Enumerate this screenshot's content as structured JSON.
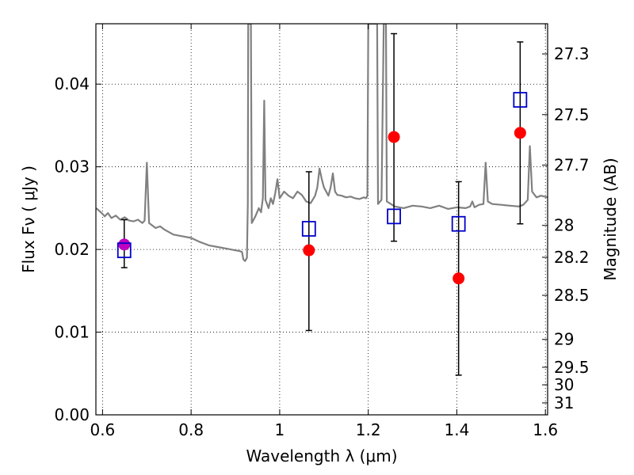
{
  "chart_data": {
    "type": "scatter",
    "xlabel": "Wavelength  λ (μm)",
    "ylabel": "Flux  Fν  ( μJy )",
    "y2label": "Magnitude (AB)",
    "xlim": [
      0.585,
      1.605
    ],
    "ylim": [
      0.0,
      0.0473
    ],
    "x_ticks": [
      0.6,
      0.8,
      1.0,
      1.2,
      1.4,
      1.6
    ],
    "x_tick_labels": [
      "0.6",
      "0.8",
      "1",
      "1.2",
      "1.4",
      "1.6"
    ],
    "y_ticks": [
      0.0,
      0.01,
      0.02,
      0.03,
      0.04
    ],
    "y_tick_labels": [
      "0.00",
      "0.01",
      "0.02",
      "0.03",
      "0.04"
    ],
    "y2_ticks": [
      27.3,
      27.5,
      27.7,
      28,
      28.2,
      28.5,
      29,
      29.5,
      30,
      31
    ],
    "y2_tick_labels": [
      "27.3",
      "27.5",
      "27.7",
      "28",
      "28.2",
      "28.5",
      "29",
      "29.5",
      "30",
      "31"
    ],
    "grid": true,
    "spectrum": {
      "color": "#808080",
      "points": [
        [
          0.585,
          0.025
        ],
        [
          0.59,
          0.0248
        ],
        [
          0.6,
          0.0243
        ],
        [
          0.605,
          0.024
        ],
        [
          0.612,
          0.0244
        ],
        [
          0.62,
          0.0238
        ],
        [
          0.63,
          0.0241
        ],
        [
          0.64,
          0.0236
        ],
        [
          0.65,
          0.0239
        ],
        [
          0.66,
          0.0235
        ],
        [
          0.67,
          0.0234
        ],
        [
          0.68,
          0.0236
        ],
        [
          0.69,
          0.0232
        ],
        [
          0.695,
          0.0235
        ],
        [
          0.7,
          0.0305
        ],
        [
          0.705,
          0.0232
        ],
        [
          0.72,
          0.0226
        ],
        [
          0.73,
          0.0228
        ],
        [
          0.74,
          0.0224
        ],
        [
          0.75,
          0.0221
        ],
        [
          0.76,
          0.0218
        ],
        [
          0.78,
          0.0216
        ],
        [
          0.8,
          0.0214
        ],
        [
          0.82,
          0.0209
        ],
        [
          0.84,
          0.0205
        ],
        [
          0.86,
          0.0203
        ],
        [
          0.88,
          0.0201
        ],
        [
          0.9,
          0.0199
        ],
        [
          0.91,
          0.0198
        ],
        [
          0.915,
          0.0197
        ],
        [
          0.918,
          0.0188
        ],
        [
          0.922,
          0.0186
        ],
        [
          0.926,
          0.019
        ],
        [
          0.928,
          0.0255
        ],
        [
          0.929,
          0.0473
        ],
        [
          0.935,
          0.0473
        ],
        [
          0.937,
          0.0232
        ],
        [
          0.945,
          0.024
        ],
        [
          0.953,
          0.025
        ],
        [
          0.958,
          0.0245
        ],
        [
          0.962,
          0.0262
        ],
        [
          0.965,
          0.038
        ],
        [
          0.968,
          0.026
        ],
        [
          0.975,
          0.025
        ],
        [
          0.98,
          0.0262
        ],
        [
          0.985,
          0.0255
        ],
        [
          0.99,
          0.0268
        ],
        [
          0.995,
          0.0285
        ],
        [
          1.0,
          0.0262
        ],
        [
          1.01,
          0.027
        ],
        [
          1.02,
          0.0265
        ],
        [
          1.03,
          0.0262
        ],
        [
          1.04,
          0.027
        ],
        [
          1.05,
          0.0266
        ],
        [
          1.06,
          0.0258
        ],
        [
          1.07,
          0.0256
        ],
        [
          1.08,
          0.0265
        ],
        [
          1.085,
          0.0275
        ],
        [
          1.09,
          0.0298
        ],
        [
          1.095,
          0.0285
        ],
        [
          1.1,
          0.0275
        ],
        [
          1.11,
          0.0265
        ],
        [
          1.115,
          0.0275
        ],
        [
          1.12,
          0.0292
        ],
        [
          1.125,
          0.027
        ],
        [
          1.13,
          0.0266
        ],
        [
          1.14,
          0.0265
        ],
        [
          1.15,
          0.0263
        ],
        [
          1.16,
          0.0264
        ],
        [
          1.17,
          0.0262
        ],
        [
          1.18,
          0.0261
        ],
        [
          1.19,
          0.0263
        ],
        [
          1.195,
          0.0262
        ],
        [
          1.198,
          0.0265
        ],
        [
          1.2,
          0.0473
        ],
        [
          1.22,
          0.0473
        ],
        [
          1.222,
          0.0255
        ],
        [
          1.23,
          0.026
        ],
        [
          1.235,
          0.0473
        ],
        [
          1.24,
          0.0473
        ],
        [
          1.242,
          0.0258
        ],
        [
          1.26,
          0.0252
        ],
        [
          1.28,
          0.025
        ],
        [
          1.3,
          0.0253
        ],
        [
          1.32,
          0.0252
        ],
        [
          1.34,
          0.025
        ],
        [
          1.36,
          0.0253
        ],
        [
          1.38,
          0.0249
        ],
        [
          1.4,
          0.0251
        ],
        [
          1.42,
          0.025
        ],
        [
          1.43,
          0.0252
        ],
        [
          1.435,
          0.0258
        ],
        [
          1.44,
          0.0251
        ],
        [
          1.45,
          0.0254
        ],
        [
          1.46,
          0.0255
        ],
        [
          1.465,
          0.0305
        ],
        [
          1.47,
          0.0258
        ],
        [
          1.48,
          0.0255
        ],
        [
          1.5,
          0.0254
        ],
        [
          1.52,
          0.0253
        ],
        [
          1.54,
          0.0252
        ],
        [
          1.55,
          0.0254
        ],
        [
          1.56,
          0.026
        ],
        [
          1.565,
          0.0325
        ],
        [
          1.57,
          0.027
        ],
        [
          1.58,
          0.0263
        ],
        [
          1.59,
          0.0265
        ],
        [
          1.605,
          0.0263
        ]
      ]
    },
    "observed": {
      "marker": "circle",
      "color": "#ff0000",
      "points": [
        {
          "x": 1.066,
          "y": 0.0199
        },
        {
          "x": 1.258,
          "y": 0.0336
        },
        {
          "x": 1.404,
          "y": 0.0165
        },
        {
          "x": 1.543,
          "y": 0.0341
        }
      ]
    },
    "highlight_point": {
      "x": 0.649,
      "y": 0.0206,
      "color": "#c000c0"
    },
    "model": {
      "marker": "square",
      "color": "#0000cc",
      "points": [
        {
          "x": 0.649,
          "y": 0.0199,
          "err_low": 0.0178,
          "err_high": 0.0236
        },
        {
          "x": 1.066,
          "y": 0.0225,
          "err_low": 0.0102,
          "err_high": 0.0294
        },
        {
          "x": 1.258,
          "y": 0.024,
          "err_low": 0.021,
          "err_high": 0.0461
        },
        {
          "x": 1.404,
          "y": 0.0231,
          "err_low": 0.0048,
          "err_high": 0.0282
        },
        {
          "x": 1.543,
          "y": 0.0381,
          "err_low": 0.0231,
          "err_high": 0.0451
        }
      ]
    }
  }
}
